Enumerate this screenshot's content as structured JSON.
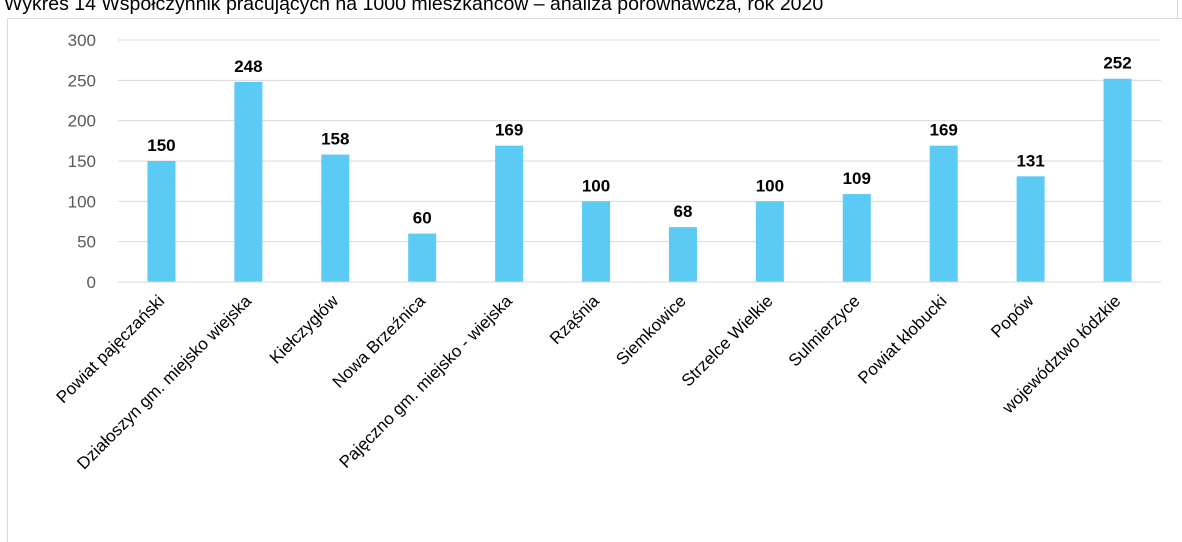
{
  "chart_data": {
    "type": "bar",
    "title": "Wykres 14 Współczynnik pracujących na 1000 mieszkańców – analiza porównawcza, rok 2020",
    "xlabel": "",
    "ylabel": "",
    "categories": [
      "Powiat pajęczański",
      "Działoszyn gm. miejsko wiejska",
      "Kiełczygłów",
      "Nowa Brzeźnica",
      "Pajęczno gm. miejsko - wiejska",
      "Rząśnia",
      "Siemkowice",
      "Strzelce Wielkie",
      "Sulmierzyce",
      "Powiat kłobucki",
      "Popów",
      "województwo łódzkie"
    ],
    "values": [
      150,
      248,
      158,
      60,
      169,
      100,
      68,
      100,
      109,
      169,
      131,
      252
    ],
    "ylim": [
      0,
      300
    ],
    "yticks": [
      0,
      50,
      100,
      150,
      200,
      250,
      300
    ],
    "grid": true,
    "legend": "none",
    "bar_color": "#5bcbf5",
    "gridline_color": "#d9d9d9"
  }
}
